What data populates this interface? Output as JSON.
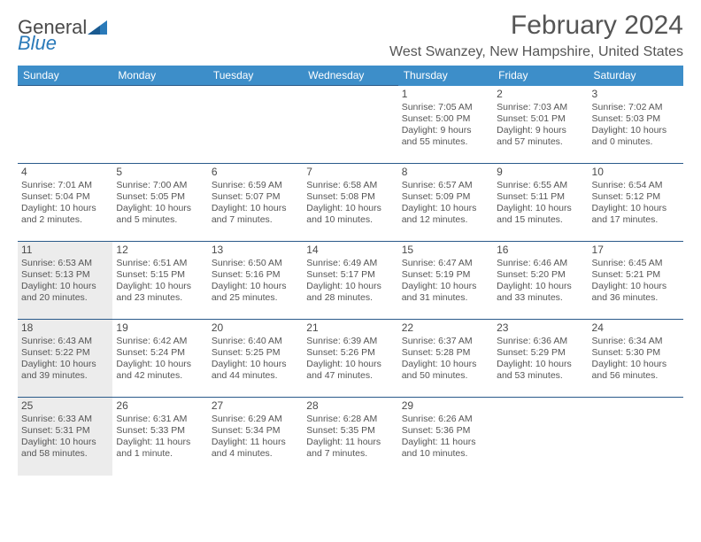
{
  "logo": {
    "word1": "General",
    "word2": "Blue"
  },
  "title": "February 2024",
  "location": "West Swanzey, New Hampshire, United States",
  "day_headers": [
    "Sunday",
    "Monday",
    "Tuesday",
    "Wednesday",
    "Thursday",
    "Friday",
    "Saturday"
  ],
  "colors": {
    "header_bg": "#3d8ec9",
    "header_text": "#ffffff",
    "border": "#2a5a8a",
    "shaded_bg": "#ececec",
    "body_text": "#555555",
    "logo_gray": "#4a4a4a",
    "logo_blue": "#2a7ab9"
  },
  "weeks": [
    [
      {
        "empty": true
      },
      {
        "empty": true
      },
      {
        "empty": true
      },
      {
        "empty": true
      },
      {
        "day": "1",
        "sunrise": "Sunrise: 7:05 AM",
        "sunset": "Sunset: 5:00 PM",
        "dl1": "Daylight: 9 hours",
        "dl2": "and 55 minutes."
      },
      {
        "day": "2",
        "sunrise": "Sunrise: 7:03 AM",
        "sunset": "Sunset: 5:01 PM",
        "dl1": "Daylight: 9 hours",
        "dl2": "and 57 minutes."
      },
      {
        "day": "3",
        "sunrise": "Sunrise: 7:02 AM",
        "sunset": "Sunset: 5:03 PM",
        "dl1": "Daylight: 10 hours",
        "dl2": "and 0 minutes."
      }
    ],
    [
      {
        "day": "4",
        "sunrise": "Sunrise: 7:01 AM",
        "sunset": "Sunset: 5:04 PM",
        "dl1": "Daylight: 10 hours",
        "dl2": "and 2 minutes."
      },
      {
        "day": "5",
        "sunrise": "Sunrise: 7:00 AM",
        "sunset": "Sunset: 5:05 PM",
        "dl1": "Daylight: 10 hours",
        "dl2": "and 5 minutes."
      },
      {
        "day": "6",
        "sunrise": "Sunrise: 6:59 AM",
        "sunset": "Sunset: 5:07 PM",
        "dl1": "Daylight: 10 hours",
        "dl2": "and 7 minutes."
      },
      {
        "day": "7",
        "sunrise": "Sunrise: 6:58 AM",
        "sunset": "Sunset: 5:08 PM",
        "dl1": "Daylight: 10 hours",
        "dl2": "and 10 minutes."
      },
      {
        "day": "8",
        "sunrise": "Sunrise: 6:57 AM",
        "sunset": "Sunset: 5:09 PM",
        "dl1": "Daylight: 10 hours",
        "dl2": "and 12 minutes."
      },
      {
        "day": "9",
        "sunrise": "Sunrise: 6:55 AM",
        "sunset": "Sunset: 5:11 PM",
        "dl1": "Daylight: 10 hours",
        "dl2": "and 15 minutes."
      },
      {
        "day": "10",
        "sunrise": "Sunrise: 6:54 AM",
        "sunset": "Sunset: 5:12 PM",
        "dl1": "Daylight: 10 hours",
        "dl2": "and 17 minutes."
      }
    ],
    [
      {
        "day": "11",
        "shaded": true,
        "sunrise": "Sunrise: 6:53 AM",
        "sunset": "Sunset: 5:13 PM",
        "dl1": "Daylight: 10 hours",
        "dl2": "and 20 minutes."
      },
      {
        "day": "12",
        "sunrise": "Sunrise: 6:51 AM",
        "sunset": "Sunset: 5:15 PM",
        "dl1": "Daylight: 10 hours",
        "dl2": "and 23 minutes."
      },
      {
        "day": "13",
        "sunrise": "Sunrise: 6:50 AM",
        "sunset": "Sunset: 5:16 PM",
        "dl1": "Daylight: 10 hours",
        "dl2": "and 25 minutes."
      },
      {
        "day": "14",
        "sunrise": "Sunrise: 6:49 AM",
        "sunset": "Sunset: 5:17 PM",
        "dl1": "Daylight: 10 hours",
        "dl2": "and 28 minutes."
      },
      {
        "day": "15",
        "sunrise": "Sunrise: 6:47 AM",
        "sunset": "Sunset: 5:19 PM",
        "dl1": "Daylight: 10 hours",
        "dl2": "and 31 minutes."
      },
      {
        "day": "16",
        "sunrise": "Sunrise: 6:46 AM",
        "sunset": "Sunset: 5:20 PM",
        "dl1": "Daylight: 10 hours",
        "dl2": "and 33 minutes."
      },
      {
        "day": "17",
        "sunrise": "Sunrise: 6:45 AM",
        "sunset": "Sunset: 5:21 PM",
        "dl1": "Daylight: 10 hours",
        "dl2": "and 36 minutes."
      }
    ],
    [
      {
        "day": "18",
        "shaded": true,
        "sunrise": "Sunrise: 6:43 AM",
        "sunset": "Sunset: 5:22 PM",
        "dl1": "Daylight: 10 hours",
        "dl2": "and 39 minutes."
      },
      {
        "day": "19",
        "sunrise": "Sunrise: 6:42 AM",
        "sunset": "Sunset: 5:24 PM",
        "dl1": "Daylight: 10 hours",
        "dl2": "and 42 minutes."
      },
      {
        "day": "20",
        "sunrise": "Sunrise: 6:40 AM",
        "sunset": "Sunset: 5:25 PM",
        "dl1": "Daylight: 10 hours",
        "dl2": "and 44 minutes."
      },
      {
        "day": "21",
        "sunrise": "Sunrise: 6:39 AM",
        "sunset": "Sunset: 5:26 PM",
        "dl1": "Daylight: 10 hours",
        "dl2": "and 47 minutes."
      },
      {
        "day": "22",
        "sunrise": "Sunrise: 6:37 AM",
        "sunset": "Sunset: 5:28 PM",
        "dl1": "Daylight: 10 hours",
        "dl2": "and 50 minutes."
      },
      {
        "day": "23",
        "sunrise": "Sunrise: 6:36 AM",
        "sunset": "Sunset: 5:29 PM",
        "dl1": "Daylight: 10 hours",
        "dl2": "and 53 minutes."
      },
      {
        "day": "24",
        "sunrise": "Sunrise: 6:34 AM",
        "sunset": "Sunset: 5:30 PM",
        "dl1": "Daylight: 10 hours",
        "dl2": "and 56 minutes."
      }
    ],
    [
      {
        "day": "25",
        "shaded": true,
        "sunrise": "Sunrise: 6:33 AM",
        "sunset": "Sunset: 5:31 PM",
        "dl1": "Daylight: 10 hours",
        "dl2": "and 58 minutes."
      },
      {
        "day": "26",
        "sunrise": "Sunrise: 6:31 AM",
        "sunset": "Sunset: 5:33 PM",
        "dl1": "Daylight: 11 hours",
        "dl2": "and 1 minute."
      },
      {
        "day": "27",
        "sunrise": "Sunrise: 6:29 AM",
        "sunset": "Sunset: 5:34 PM",
        "dl1": "Daylight: 11 hours",
        "dl2": "and 4 minutes."
      },
      {
        "day": "28",
        "sunrise": "Sunrise: 6:28 AM",
        "sunset": "Sunset: 5:35 PM",
        "dl1": "Daylight: 11 hours",
        "dl2": "and 7 minutes."
      },
      {
        "day": "29",
        "sunrise": "Sunrise: 6:26 AM",
        "sunset": "Sunset: 5:36 PM",
        "dl1": "Daylight: 11 hours",
        "dl2": "and 10 minutes."
      },
      {
        "empty": true
      },
      {
        "empty": true
      }
    ]
  ]
}
